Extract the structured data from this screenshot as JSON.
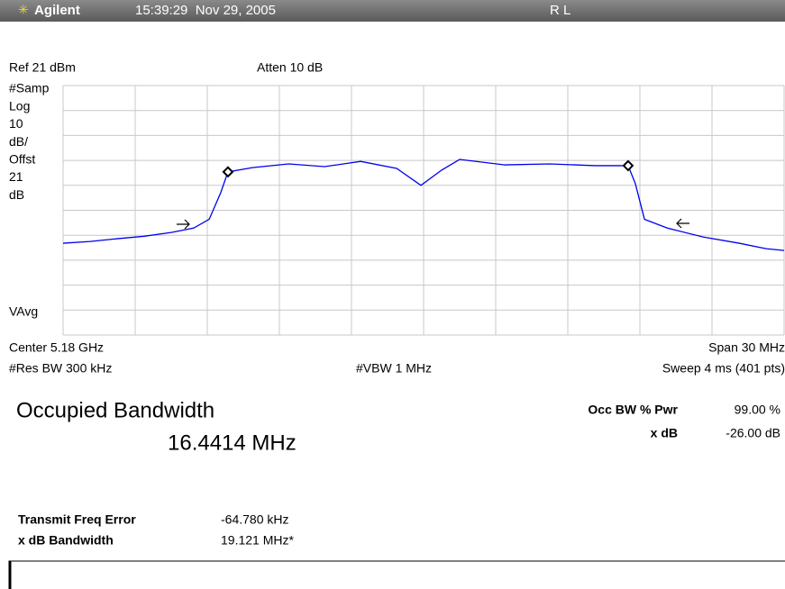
{
  "header": {
    "brand": "Agilent",
    "timestamp": "15:39:29  Nov 29, 2005",
    "status": "R L"
  },
  "display": {
    "ref_level": "Ref 21 dBm",
    "attenuation": "Atten 10 dB",
    "side_labels": [
      "#Samp",
      "Log",
      "10",
      "dB/",
      "Offst",
      "21",
      "dB"
    ],
    "avg_label": "VAvg",
    "center": "Center 5.18 GHz",
    "span": "Span 30 MHz",
    "res_bw": "#Res BW 300 kHz",
    "vbw": "#VBW 1 MHz",
    "sweep": "Sweep 4 ms (401 pts)"
  },
  "chart_data": {
    "type": "line",
    "color": "#0000ee",
    "xlim": [
      5.165,
      5.195
    ],
    "ylim": [
      -79,
      21
    ],
    "x": [
      5.165,
      5.16613,
      5.16725,
      5.16838,
      5.1695,
      5.17044,
      5.17108,
      5.17156,
      5.17186,
      5.17288,
      5.17438,
      5.17588,
      5.17738,
      5.17888,
      5.17989,
      5.18075,
      5.1815,
      5.18338,
      5.18525,
      5.18713,
      5.18851,
      5.18881,
      5.18919,
      5.19013,
      5.19163,
      5.19313,
      5.19425,
      5.195
    ],
    "values": [
      -42.2,
      -41.5,
      -40.4,
      -39.4,
      -37.9,
      -36.1,
      -32.6,
      -21.9,
      -13.6,
      -11.9,
      -10.4,
      -11.5,
      -9.4,
      -12.2,
      -19.0,
      -12.9,
      -8.6,
      -10.8,
      -10.4,
      -11.1,
      -11.1,
      -18.3,
      -32.6,
      -36.1,
      -39.7,
      -42.2,
      -44.4,
      -45.1
    ],
    "markers": [
      {
        "x": 5.17186,
        "value": -13.6
      },
      {
        "x": 5.18851,
        "value": -11.1
      }
    ]
  },
  "results": {
    "title": "Occupied Bandwidth",
    "bandwidth": "16.4414 MHz",
    "occ_pwr_label": "Occ BW % Pwr",
    "occ_pwr_value": "99.00 %",
    "xdb_label": "x dB",
    "xdb_value": "-26.00 dB",
    "freq_error_label": "Transmit Freq Error",
    "freq_error_value": "-64.780 kHz",
    "xdb_bw_label": "x dB Bandwidth",
    "xdb_bw_value": "19.121 MHz*"
  }
}
